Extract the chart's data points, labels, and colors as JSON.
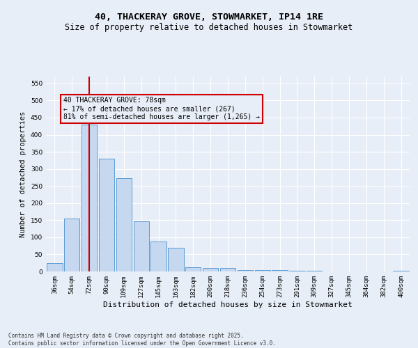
{
  "title_line1": "40, THACKERAY GROVE, STOWMARKET, IP14 1RE",
  "title_line2": "Size of property relative to detached houses in Stowmarket",
  "xlabel": "Distribution of detached houses by size in Stowmarket",
  "ylabel": "Number of detached properties",
  "categories": [
    "36sqm",
    "54sqm",
    "72sqm",
    "90sqm",
    "109sqm",
    "127sqm",
    "145sqm",
    "163sqm",
    "182sqm",
    "200sqm",
    "218sqm",
    "236sqm",
    "254sqm",
    "273sqm",
    "291sqm",
    "309sqm",
    "327sqm",
    "345sqm",
    "364sqm",
    "382sqm",
    "400sqm"
  ],
  "values": [
    25,
    155,
    430,
    330,
    272,
    147,
    88,
    70,
    12,
    10,
    10,
    5,
    5,
    5,
    3,
    2,
    1,
    1,
    1,
    1,
    3
  ],
  "bar_color": "#c5d8f0",
  "bar_edge_color": "#5b9bd5",
  "annotation_line1": "40 THACKERAY GROVE: 78sqm",
  "annotation_line2": "← 17% of detached houses are smaller (267)",
  "annotation_line3": "81% of semi-detached houses are larger (1,265) →",
  "vline_x_index": 2,
  "vline_color": "#cc0000",
  "ylim": [
    0,
    570
  ],
  "yticks": [
    0,
    50,
    100,
    150,
    200,
    250,
    300,
    350,
    400,
    450,
    500,
    550
  ],
  "background_color": "#e8eef7",
  "grid_color": "#ffffff",
  "footnote": "Contains HM Land Registry data © Crown copyright and database right 2025.\nContains public sector information licensed under the Open Government Licence v3.0.",
  "title_fontsize": 9.5,
  "subtitle_fontsize": 8.5,
  "tick_fontsize": 6.5,
  "ylabel_fontsize": 7.5,
  "xlabel_fontsize": 8,
  "annot_fontsize": 7,
  "footnote_fontsize": 5.5,
  "bar_width": 0.9
}
